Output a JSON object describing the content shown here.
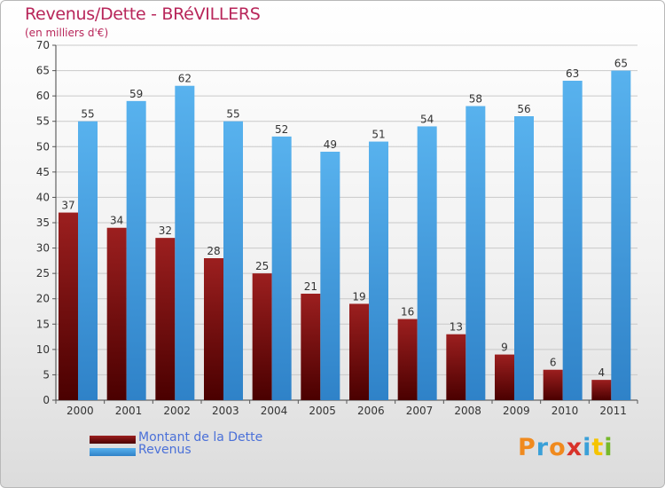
{
  "chart_data": {
    "type": "bar",
    "title": "Revenus/Dette - BRéVILLERS",
    "subtitle": "(en milliers d'€)",
    "categories": [
      "2000",
      "2001",
      "2002",
      "2003",
      "2004",
      "2005",
      "2006",
      "2007",
      "2008",
      "2009",
      "2010",
      "2011"
    ],
    "series": [
      {
        "name": "Montant de la Dette",
        "color": "#7a0c0c",
        "values": [
          37,
          34,
          32,
          28,
          25,
          21,
          19,
          16,
          13,
          9,
          6,
          4
        ]
      },
      {
        "name": "Revenus",
        "color": "#3d98de",
        "values": [
          55,
          59,
          62,
          55,
          52,
          49,
          51,
          54,
          58,
          56,
          63,
          65
        ]
      }
    ],
    "ylim": [
      0,
      70
    ],
    "yticks": [
      0,
      5,
      10,
      15,
      20,
      25,
      30,
      35,
      40,
      45,
      50,
      55,
      60,
      65,
      70
    ],
    "grid": true,
    "legend_position": "bottom-left"
  },
  "branding": {
    "logo_letters": [
      "P",
      "r",
      "o",
      "x",
      "i",
      "t",
      "i"
    ],
    "logo_colors": [
      "#f08a1e",
      "#3aa0d8",
      "#f08a1e",
      "#d8322a",
      "#3aa0d8",
      "#f5c400",
      "#76b82a"
    ]
  }
}
